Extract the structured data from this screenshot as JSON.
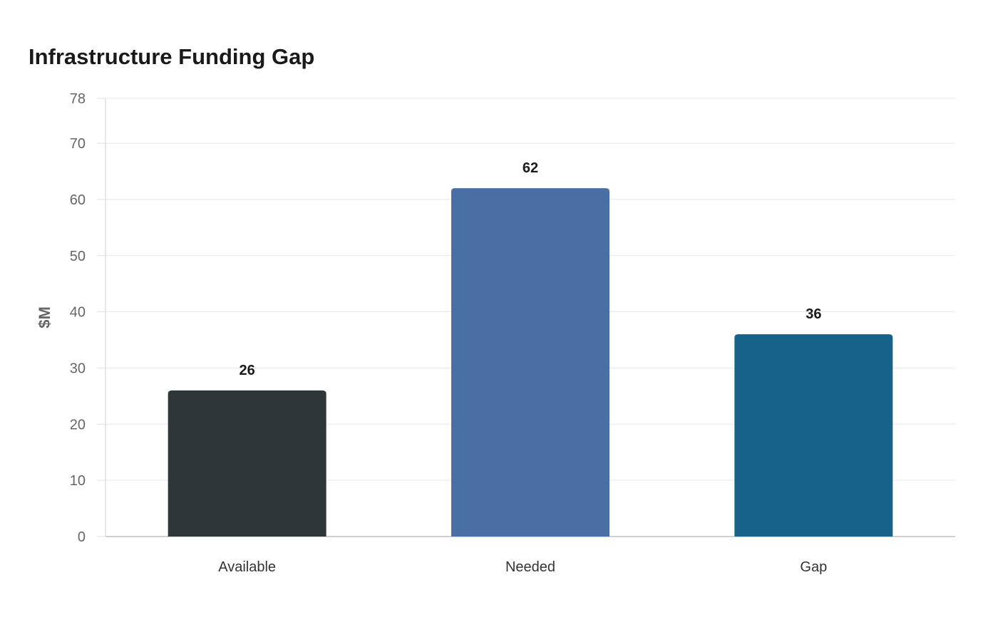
{
  "chart_data": {
    "type": "bar",
    "title": "Infrastructure Funding Gap",
    "xlabel": "",
    "ylabel": "$M",
    "categories": [
      "Available",
      "Needed",
      "Gap"
    ],
    "values": [
      26,
      62,
      36
    ],
    "colors": [
      "#2e3638",
      "#4a6fa5",
      "#176289"
    ],
    "ylim": [
      0,
      78
    ],
    "yticks": [
      0,
      10,
      20,
      30,
      40,
      50,
      60,
      70,
      78
    ],
    "grid": true,
    "legend": "none"
  }
}
